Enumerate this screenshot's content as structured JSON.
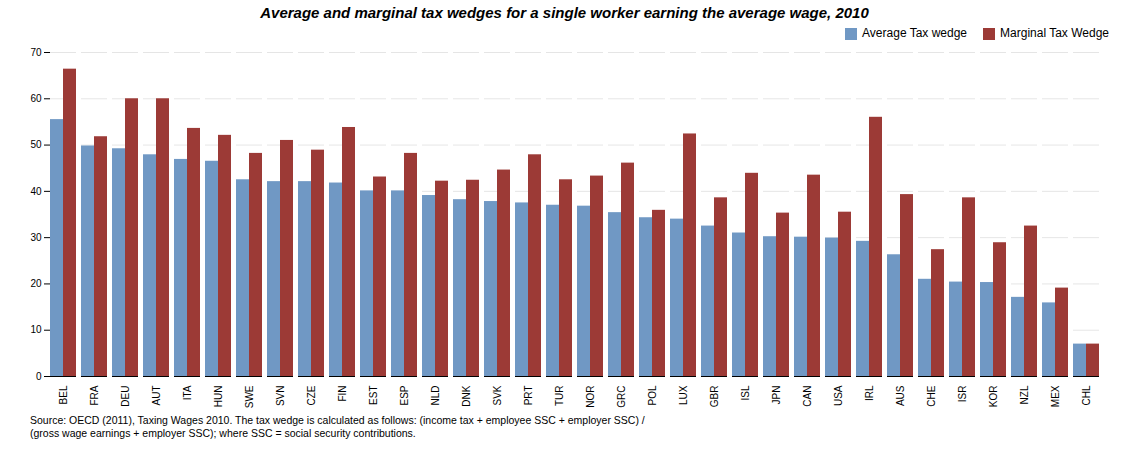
{
  "chart_data": {
    "type": "bar",
    "title": "Average and marginal tax wedges for a single worker earning the average wage, 2010",
    "categories": [
      "BEL",
      "FRA",
      "DEU",
      "AUT",
      "ITA",
      "HUN",
      "SWE",
      "SVN",
      "CZE",
      "FIN",
      "EST",
      "ESP",
      "NLD",
      "DNK",
      "SVK",
      "PRT",
      "TUR",
      "NOR",
      "GRC",
      "POL",
      "LUX",
      "GBR",
      "ISL",
      "JPN",
      "CAN",
      "USA",
      "IRL",
      "AUS",
      "CHE",
      "ISR",
      "KOR",
      "NZL",
      "MEX",
      "CHL"
    ],
    "series": [
      {
        "name": "Average Tax wedge",
        "color": "#7098C4",
        "values": [
          55.5,
          49.8,
          49.2,
          47.9,
          46.9,
          46.5,
          42.5,
          42.1,
          42.1,
          41.8,
          40.1,
          40.1,
          39.1,
          38.2,
          37.8,
          37.5,
          37.0,
          36.8,
          35.4,
          34.3,
          34.0,
          32.5,
          31.0,
          30.2,
          30.1,
          29.9,
          29.2,
          26.3,
          21.0,
          20.4,
          20.3,
          17.1,
          15.9,
          7.0
        ]
      },
      {
        "name": "Marginal Tax Wedge",
        "color": "#9C3A36",
        "values": [
          66.4,
          51.8,
          60.0,
          60.0,
          53.6,
          52.1,
          48.2,
          51.0,
          48.9,
          53.8,
          43.1,
          48.2,
          42.2,
          42.4,
          44.6,
          47.9,
          42.5,
          43.3,
          46.1,
          35.9,
          52.4,
          38.6,
          43.9,
          35.3,
          43.5,
          35.5,
          56.0,
          39.3,
          27.4,
          38.6,
          28.9,
          32.5,
          19.1,
          7.0
        ]
      }
    ],
    "ylim": [
      0,
      70
    ],
    "yticks": [
      0,
      10,
      20,
      30,
      40,
      50,
      60,
      70
    ],
    "grid": true,
    "legend": "upper right",
    "caption": "Source: OECD (2011), Taxing Wages 2010.   The tax wedge is calculated as follows: (income tax + employee SSC + employer SSC) /\n(gross wage earnings + employer SSC); where SSC = social security contributions."
  }
}
